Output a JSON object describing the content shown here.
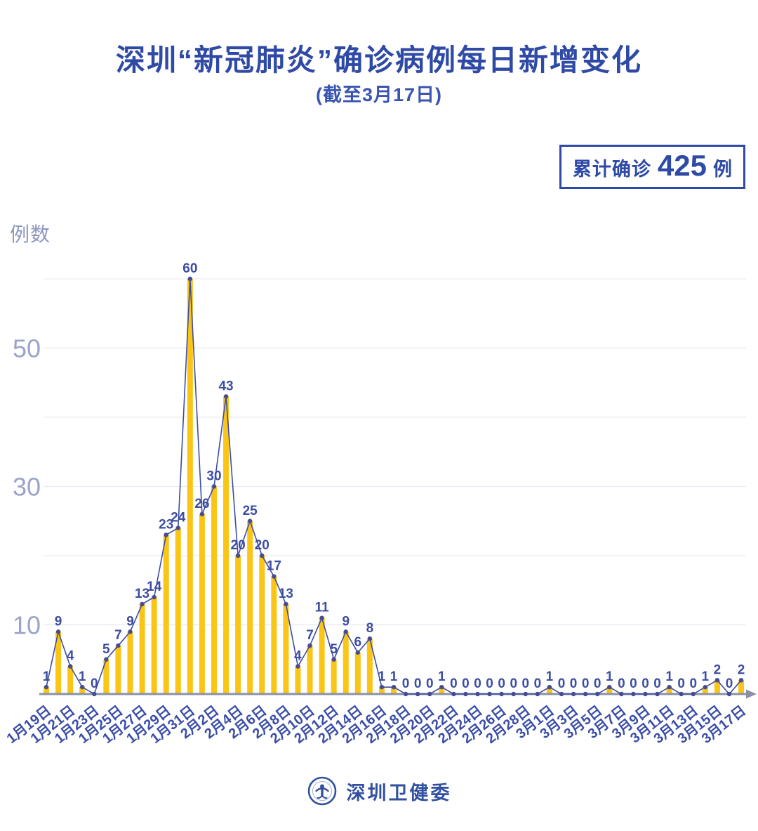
{
  "header": {
    "title": "深圳“新冠肺炎”确诊病例每日新增变化",
    "subtitle": "(截至3月17日)"
  },
  "badge": {
    "label": "累计确诊",
    "count": "425",
    "unit": "例"
  },
  "chart_data": {
    "type": "bar",
    "line_overlay": true,
    "title": "深圳“新冠肺炎”确诊病例每日新增变化",
    "subtitle": "(截至3月17日)",
    "ylabel": "例数",
    "xlabel": "",
    "ylim": [
      0,
      62
    ],
    "grid": true,
    "gridlines": [
      10,
      20,
      30,
      40,
      50,
      60
    ],
    "yticks": [
      10,
      30,
      50
    ],
    "xtick_every": 2,
    "x": [
      "1月19日",
      "1月20日",
      "1月21日",
      "1月22日",
      "1月23日",
      "1月24日",
      "1月25日",
      "1月26日",
      "1月27日",
      "1月28日",
      "1月29日",
      "1月30日",
      "1月31日",
      "2月1日",
      "2月2日",
      "2月3日",
      "2月4日",
      "2月5日",
      "2月6日",
      "2月7日",
      "2月8日",
      "2月9日",
      "2月10日",
      "2月11日",
      "2月12日",
      "2月13日",
      "2月14日",
      "2月15日",
      "2月16日",
      "2月17日",
      "2月18日",
      "2月19日",
      "2月20日",
      "2月21日",
      "2月22日",
      "2月23日",
      "2月24日",
      "2月25日",
      "2月26日",
      "2月27日",
      "2月28日",
      "2月29日",
      "3月1日",
      "3月2日",
      "3月3日",
      "3月4日",
      "3月5日",
      "3月6日",
      "3月7日",
      "3月8日",
      "3月9日",
      "3月10日",
      "3月11日",
      "3月12日",
      "3月13日",
      "3月14日",
      "3月15日",
      "3月16日",
      "3月17日"
    ],
    "values": [
      1,
      9,
      4,
      1,
      0,
      5,
      7,
      9,
      13,
      14,
      23,
      24,
      60,
      26,
      30,
      43,
      20,
      25,
      20,
      17,
      13,
      4,
      7,
      11,
      5,
      9,
      6,
      8,
      1,
      1,
      0,
      0,
      0,
      1,
      0,
      0,
      0,
      0,
      0,
      0,
      0,
      0,
      1,
      0,
      0,
      0,
      0,
      1,
      0,
      0,
      0,
      0,
      1,
      0,
      0,
      1,
      2,
      0,
      2
    ],
    "cumulative_total": 425,
    "colors": {
      "bar": "#FBC516",
      "line": "#3D4DA2",
      "dot": "#474B92",
      "value_label": "#3D4DA2",
      "axis": "#8A90A8",
      "grid": "#E9EAF2",
      "ytick": "#9CA3CB",
      "xtick": "#3A4DA6",
      "title": "#2E4AA5"
    }
  },
  "footer": {
    "org": "深圳卫健委",
    "logo": "shenzhen-health-commission-emblem"
  }
}
